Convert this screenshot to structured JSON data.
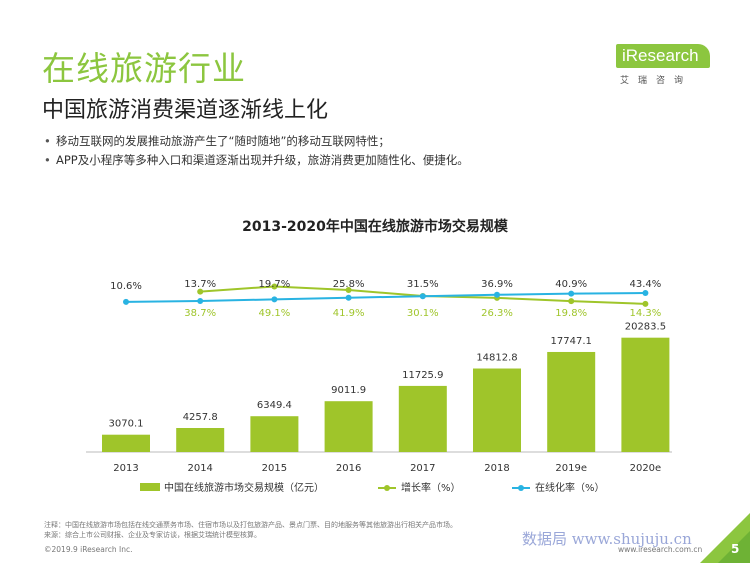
{
  "header": {
    "section_title": "在线旅游行业",
    "subtitle": "中国旅游消费渠道逐渐线上化"
  },
  "logo": {
    "name": "iResearch",
    "sub": "艾瑞咨询"
  },
  "bullets": [
    "移动互联网的发展推动旅游产生了“随时随地”的移动互联网特性；",
    "APP及小程序等多种入口和渠道逐渐出现并升级，旅游消费更加随性化、便捷化。"
  ],
  "colors": {
    "brand_green": "#8cc63f",
    "bar": "#9fc52a",
    "growth_line": "#9fc52a",
    "online_line": "#29b3e2"
  },
  "chart_data": {
    "type": "bar",
    "title": "2013-2020年中国在线旅游市场交易规模",
    "categories": [
      "2013",
      "2014",
      "2015",
      "2016",
      "2017",
      "2018",
      "2019e",
      "2020e"
    ],
    "series": [
      {
        "name": "中国在线旅游市场交易规模（亿元）",
        "type": "bar",
        "values": [
          3070.1,
          4257.8,
          6349.4,
          9011.9,
          11725.9,
          14812.8,
          17747.1,
          20283.5
        ],
        "labels": [
          "3070.1",
          "4257.8",
          "6349.4",
          "9011.9",
          "11725.9",
          "14812.8",
          "17747.1",
          "20283.5"
        ]
      },
      {
        "name": "增长率（%）",
        "type": "line",
        "values": [
          null,
          38.7,
          49.1,
          41.9,
          30.1,
          26.3,
          19.8,
          14.3
        ],
        "labels": [
          "",
          "38.7%",
          "49.1%",
          "41.9%",
          "30.1%",
          "26.3%",
          "19.8%",
          "14.3%"
        ]
      },
      {
        "name": "在线化率（%）",
        "type": "line",
        "values": [
          10.6,
          13.7,
          19.7,
          25.8,
          31.5,
          36.9,
          40.9,
          43.4
        ],
        "labels": [
          "10.6%",
          "13.7%",
          "19.7%",
          "25.8%",
          "31.5%",
          "36.9%",
          "40.9%",
          "43.4%"
        ]
      }
    ],
    "ylim_bar": [
      0,
      22000
    ],
    "legend_position": "bottom"
  },
  "footer": {
    "note1": "注释：中国在线旅游市场包括在线交通票务市场、住宿市场以及打包旅游产品、景点门票、目的地服务等其他旅游出行相关产品市场。",
    "note2": "来源：综合上市公司财报、企业及专家访谈，根据艾瑞统计模型核算。",
    "copyright": "©2019.9 iResearch Inc.",
    "website": "www.iresearch.com.cn",
    "watermark": "数据局 www.shujuju.cn",
    "page": "5"
  }
}
